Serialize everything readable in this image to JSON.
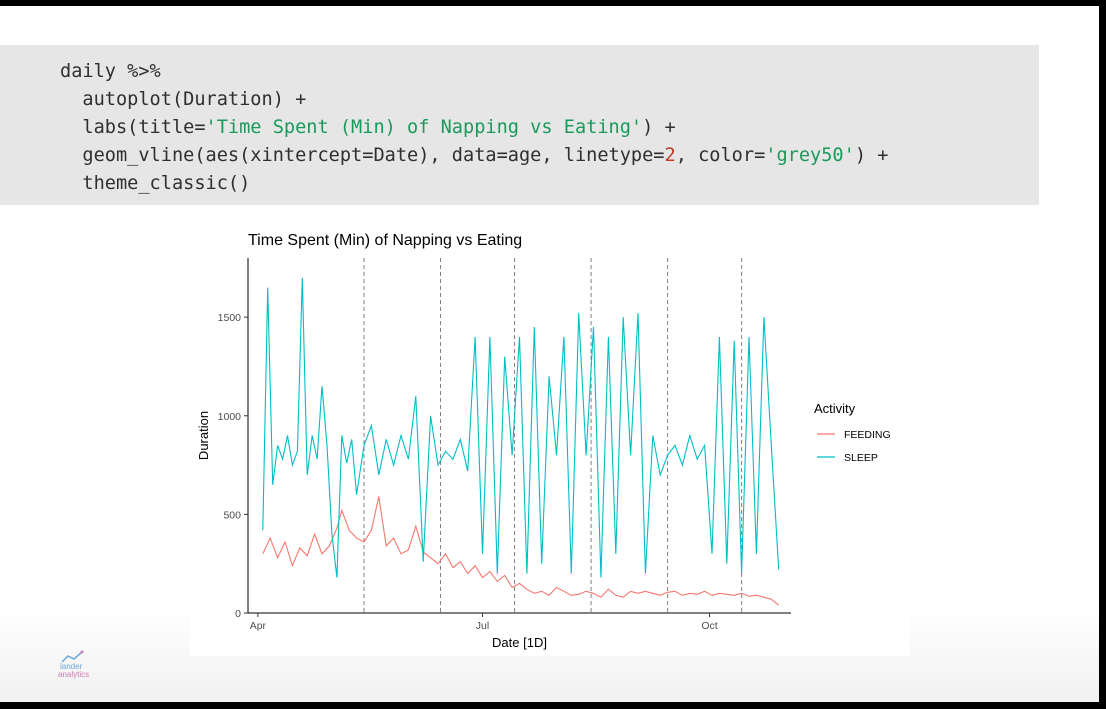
{
  "code": {
    "line1": "daily %>%",
    "line2": "  autoplot(Duration) +",
    "line3_a": "  labs(title=",
    "line3_b": "'Time Spent (Min) of Napping vs Eating'",
    "line3_c": ") +",
    "line4_a": "  geom_vline(aes(xintercept=Date), data=age, linetype=",
    "line4_b": "2",
    "line4_c": ", color=",
    "line4_d": "'grey50'",
    "line4_e": ") +",
    "line5": "  theme_classic()"
  },
  "logo": {
    "line1": "lander",
    "line2": "analytics"
  },
  "chart_data": {
    "type": "line",
    "title": "Time Spent (Min) of Napping vs Eating",
    "xlabel": "Date [1D]",
    "ylabel": "Duration",
    "x_ticks": [
      "Apr",
      "Jul",
      "Oct"
    ],
    "y_ticks": [
      0,
      500,
      1000,
      1500
    ],
    "ylim": [
      0,
      1800
    ],
    "xlim": [
      "2020-03-28",
      "2020-11-03"
    ],
    "vlines": [
      "2020-05-14",
      "2020-06-14",
      "2020-07-14",
      "2020-08-14",
      "2020-09-14",
      "2020-10-14"
    ],
    "legend": {
      "title": "Activity",
      "position": "right"
    },
    "grid": false,
    "series": [
      {
        "name": "FEEDING",
        "color": "#F8766D",
        "values": [
          [
            "2020-04-03",
            300
          ],
          [
            "2020-04-06",
            380
          ],
          [
            "2020-04-09",
            280
          ],
          [
            "2020-04-12",
            360
          ],
          [
            "2020-04-15",
            240
          ],
          [
            "2020-04-18",
            330
          ],
          [
            "2020-04-21",
            290
          ],
          [
            "2020-04-24",
            400
          ],
          [
            "2020-04-27",
            300
          ],
          [
            "2020-04-30",
            340
          ],
          [
            "2020-05-03",
            430
          ],
          [
            "2020-05-05",
            520
          ],
          [
            "2020-05-08",
            420
          ],
          [
            "2020-05-11",
            380
          ],
          [
            "2020-05-14",
            360
          ],
          [
            "2020-05-17",
            420
          ],
          [
            "2020-05-20",
            590
          ],
          [
            "2020-05-23",
            340
          ],
          [
            "2020-05-26",
            380
          ],
          [
            "2020-05-29",
            300
          ],
          [
            "2020-06-01",
            320
          ],
          [
            "2020-06-04",
            440
          ],
          [
            "2020-06-07",
            310
          ],
          [
            "2020-06-10",
            280
          ],
          [
            "2020-06-13",
            250
          ],
          [
            "2020-06-16",
            300
          ],
          [
            "2020-06-19",
            230
          ],
          [
            "2020-06-22",
            260
          ],
          [
            "2020-06-25",
            200
          ],
          [
            "2020-06-28",
            240
          ],
          [
            "2020-07-01",
            180
          ],
          [
            "2020-07-04",
            210
          ],
          [
            "2020-07-07",
            160
          ],
          [
            "2020-07-10",
            190
          ],
          [
            "2020-07-13",
            130
          ],
          [
            "2020-07-16",
            150
          ],
          [
            "2020-07-19",
            120
          ],
          [
            "2020-07-22",
            100
          ],
          [
            "2020-07-25",
            110
          ],
          [
            "2020-07-28",
            90
          ],
          [
            "2020-07-31",
            130
          ],
          [
            "2020-08-03",
            110
          ],
          [
            "2020-08-06",
            90
          ],
          [
            "2020-08-09",
            95
          ],
          [
            "2020-08-12",
            110
          ],
          [
            "2020-08-15",
            100
          ],
          [
            "2020-08-18",
            80
          ],
          [
            "2020-08-21",
            120
          ],
          [
            "2020-08-24",
            90
          ],
          [
            "2020-08-27",
            80
          ],
          [
            "2020-08-30",
            110
          ],
          [
            "2020-09-02",
            100
          ],
          [
            "2020-09-05",
            110
          ],
          [
            "2020-09-08",
            100
          ],
          [
            "2020-09-11",
            90
          ],
          [
            "2020-09-14",
            105
          ],
          [
            "2020-09-17",
            110
          ],
          [
            "2020-09-20",
            90
          ],
          [
            "2020-09-23",
            100
          ],
          [
            "2020-09-26",
            95
          ],
          [
            "2020-09-29",
            110
          ],
          [
            "2020-10-02",
            90
          ],
          [
            "2020-10-05",
            100
          ],
          [
            "2020-10-08",
            95
          ],
          [
            "2020-10-11",
            90
          ],
          [
            "2020-10-14",
            100
          ],
          [
            "2020-10-17",
            85
          ],
          [
            "2020-10-20",
            90
          ],
          [
            "2020-10-23",
            80
          ],
          [
            "2020-10-26",
            70
          ],
          [
            "2020-10-29",
            40
          ]
        ]
      },
      {
        "name": "SLEEP",
        "color": "#00BFC4",
        "values": [
          [
            "2020-04-03",
            420
          ],
          [
            "2020-04-05",
            1650
          ],
          [
            "2020-04-07",
            650
          ],
          [
            "2020-04-09",
            850
          ],
          [
            "2020-04-11",
            780
          ],
          [
            "2020-04-13",
            900
          ],
          [
            "2020-04-15",
            750
          ],
          [
            "2020-04-17",
            820
          ],
          [
            "2020-04-19",
            1700
          ],
          [
            "2020-04-21",
            700
          ],
          [
            "2020-04-23",
            900
          ],
          [
            "2020-04-25",
            780
          ],
          [
            "2020-04-27",
            1150
          ],
          [
            "2020-04-29",
            850
          ],
          [
            "2020-05-01",
            400
          ],
          [
            "2020-05-03",
            180
          ],
          [
            "2020-05-05",
            900
          ],
          [
            "2020-05-07",
            760
          ],
          [
            "2020-05-09",
            880
          ],
          [
            "2020-05-11",
            600
          ],
          [
            "2020-05-14",
            850
          ],
          [
            "2020-05-17",
            950
          ],
          [
            "2020-05-20",
            700
          ],
          [
            "2020-05-23",
            880
          ],
          [
            "2020-05-26",
            750
          ],
          [
            "2020-05-29",
            900
          ],
          [
            "2020-06-01",
            780
          ],
          [
            "2020-06-04",
            1100
          ],
          [
            "2020-06-07",
            260
          ],
          [
            "2020-06-10",
            1000
          ],
          [
            "2020-06-13",
            750
          ],
          [
            "2020-06-16",
            820
          ],
          [
            "2020-06-19",
            780
          ],
          [
            "2020-06-22",
            880
          ],
          [
            "2020-06-25",
            720
          ],
          [
            "2020-06-28",
            1400
          ],
          [
            "2020-07-01",
            300
          ],
          [
            "2020-07-04",
            1400
          ],
          [
            "2020-07-07",
            200
          ],
          [
            "2020-07-10",
            1300
          ],
          [
            "2020-07-13",
            800
          ],
          [
            "2020-07-16",
            1400
          ],
          [
            "2020-07-19",
            200
          ],
          [
            "2020-07-22",
            1450
          ],
          [
            "2020-07-25",
            250
          ],
          [
            "2020-07-28",
            1200
          ],
          [
            "2020-07-31",
            800
          ],
          [
            "2020-08-03",
            1400
          ],
          [
            "2020-08-06",
            200
          ],
          [
            "2020-08-09",
            1520
          ],
          [
            "2020-08-12",
            800
          ],
          [
            "2020-08-15",
            1450
          ],
          [
            "2020-08-18",
            180
          ],
          [
            "2020-08-21",
            1400
          ],
          [
            "2020-08-24",
            300
          ],
          [
            "2020-08-27",
            1500
          ],
          [
            "2020-08-30",
            800
          ],
          [
            "2020-09-02",
            1520
          ],
          [
            "2020-09-05",
            200
          ],
          [
            "2020-09-08",
            900
          ],
          [
            "2020-09-11",
            700
          ],
          [
            "2020-09-14",
            800
          ],
          [
            "2020-09-17",
            850
          ],
          [
            "2020-09-20",
            750
          ],
          [
            "2020-09-23",
            900
          ],
          [
            "2020-09-26",
            780
          ],
          [
            "2020-09-29",
            850
          ],
          [
            "2020-10-02",
            300
          ],
          [
            "2020-10-05",
            1400
          ],
          [
            "2020-10-08",
            250
          ],
          [
            "2020-10-11",
            1380
          ],
          [
            "2020-10-14",
            200
          ],
          [
            "2020-10-17",
            1400
          ],
          [
            "2020-10-20",
            300
          ],
          [
            "2020-10-23",
            1500
          ],
          [
            "2020-10-26",
            850
          ],
          [
            "2020-10-29",
            220
          ]
        ]
      }
    ]
  }
}
